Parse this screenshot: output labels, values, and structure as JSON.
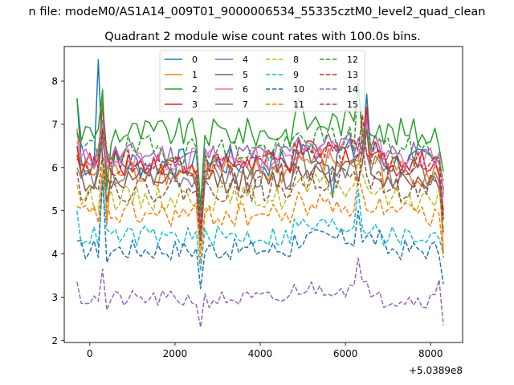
{
  "figure": {
    "suptitle": "n file: modeM0/AS1A14_009T01_9000006534_55335cztM0_level2_quad_clean"
  },
  "chart_data": {
    "type": "line",
    "title": "Quadrant 2 module wise count rates with 100.0s bins.",
    "xlabel": "",
    "ylabel": "",
    "x_offset_label": "+5.0389e8",
    "xlim": [
      -600,
      8750
    ],
    "ylim": [
      1.95,
      8.8
    ],
    "xticks": [
      0,
      2000,
      4000,
      6000,
      8000
    ],
    "xtick_labels": [
      "0",
      "2000",
      "4000",
      "6000",
      "8000"
    ],
    "yticks": [
      2,
      3,
      4,
      5,
      6,
      7,
      8
    ],
    "ytick_labels": [
      "2",
      "3",
      "4",
      "5",
      "6",
      "7",
      "8"
    ],
    "legend": {
      "location": "upper-center",
      "ncol": 4
    },
    "x_start": -300,
    "x_step": 100,
    "n_points": 87,
    "series": [
      {
        "name": "0",
        "color": "#1f77b4",
        "style": "solid",
        "base": 6.1,
        "start": 7.6,
        "end": 5.5,
        "amp": 0.35,
        "spikes": [
          [
            5,
            8.5
          ],
          [
            7,
            5.2
          ],
          [
            29,
            4.6
          ],
          [
            60,
            5.3
          ],
          [
            68,
            7.7
          ]
        ]
      },
      {
        "name": "1",
        "color": "#ff7f0e",
        "style": "solid",
        "base": 5.9,
        "start": 6.9,
        "end": 4.0,
        "amp": 0.35,
        "spikes": [
          [
            6,
            7.6
          ],
          [
            7,
            4.7
          ],
          [
            29,
            4.3
          ],
          [
            68,
            7.2
          ]
        ]
      },
      {
        "name": "2",
        "color": "#2ca02c",
        "style": "solid",
        "base": 6.8,
        "start": 7.6,
        "end": 5.9,
        "amp": 0.35,
        "spikes": [
          [
            6,
            7.8
          ],
          [
            7,
            5.5
          ],
          [
            29,
            5.1
          ],
          [
            52,
            7.6
          ],
          [
            66,
            7.9
          ],
          [
            86,
            5.8
          ]
        ]
      },
      {
        "name": "3",
        "color": "#d62728",
        "style": "solid",
        "base": 6.1,
        "start": 6.5,
        "end": 5.0,
        "amp": 0.3,
        "spikes": [
          [
            6,
            7.5
          ],
          [
            29,
            4.5
          ],
          [
            68,
            7.4
          ]
        ]
      },
      {
        "name": "4",
        "color": "#9467bd",
        "style": "solid",
        "base": 6.3,
        "start": 6.8,
        "end": 5.4,
        "amp": 0.3,
        "spikes": [
          [
            6,
            7.1
          ],
          [
            29,
            4.7
          ],
          [
            68,
            7.1
          ]
        ]
      },
      {
        "name": "5",
        "color": "#8c564b",
        "style": "solid",
        "base": 5.7,
        "start": 6.3,
        "end": 4.9,
        "amp": 0.3,
        "spikes": [
          [
            6,
            6.8
          ],
          [
            29,
            4.4
          ],
          [
            68,
            6.9
          ]
        ]
      },
      {
        "name": "6",
        "color": "#e377c2",
        "style": "solid",
        "base": 6.2,
        "start": 6.6,
        "end": 5.3,
        "amp": 0.3,
        "spikes": [
          [
            6,
            7.0
          ],
          [
            29,
            4.6
          ],
          [
            68,
            7.0
          ]
        ]
      },
      {
        "name": "7",
        "color": "#7f7f7f",
        "style": "solid",
        "base": 5.8,
        "start": 6.0,
        "end": 4.8,
        "amp": 0.3,
        "spikes": [
          [
            6,
            6.6
          ],
          [
            29,
            4.3
          ],
          [
            67,
            6.8
          ]
        ]
      },
      {
        "name": "8",
        "color": "#bcbd22",
        "style": "dashed",
        "base": 5.3,
        "start": 5.6,
        "end": 4.5,
        "amp": 0.3,
        "spikes": [
          [
            6,
            6.1
          ],
          [
            29,
            4.0
          ],
          [
            66,
            6.2
          ]
        ]
      },
      {
        "name": "9",
        "color": "#17becf",
        "style": "dashed",
        "base": 4.4,
        "start": 5.0,
        "end": 4.0,
        "amp": 0.25,
        "spikes": [
          [
            6,
            5.7
          ],
          [
            29,
            3.6
          ],
          [
            66,
            5.5
          ]
        ]
      },
      {
        "name": "10",
        "color": "#1f77b4",
        "style": "dashed",
        "base": 4.1,
        "start": 4.3,
        "end": 3.3,
        "amp": 0.25,
        "spikes": [
          [
            6,
            5.8
          ],
          [
            7,
            3.8
          ],
          [
            29,
            3.2
          ],
          [
            66,
            5.0
          ]
        ]
      },
      {
        "name": "11",
        "color": "#ff7f0e",
        "style": "dashed",
        "base": 4.9,
        "start": 5.1,
        "end": 3.9,
        "amp": 0.3,
        "spikes": [
          [
            6,
            5.9
          ],
          [
            29,
            3.8
          ],
          [
            66,
            5.8
          ]
        ]
      },
      {
        "name": "12",
        "color": "#2ca02c",
        "style": "dashed",
        "base": 6.4,
        "start": 6.8,
        "end": 5.7,
        "amp": 0.35,
        "spikes": [
          [
            6,
            7.5
          ],
          [
            29,
            4.9
          ],
          [
            66,
            8.05
          ]
        ]
      },
      {
        "name": "13",
        "color": "#d62728",
        "style": "dashed",
        "base": 6.1,
        "start": 6.2,
        "end": 4.8,
        "amp": 0.3,
        "spikes": [
          [
            6,
            6.9
          ],
          [
            29,
            4.6
          ],
          [
            67,
            7.2
          ]
        ]
      },
      {
        "name": "14",
        "color": "#9467bd",
        "style": "dashed",
        "base": 2.95,
        "start": 3.35,
        "end": 2.35,
        "amp": 0.2,
        "spikes": [
          [
            6,
            3.65
          ],
          [
            7,
            2.7
          ],
          [
            29,
            2.3
          ],
          [
            66,
            3.9
          ],
          [
            85,
            3.4
          ]
        ]
      },
      {
        "name": "15",
        "color": "#8c564b",
        "style": "dashed",
        "base": 5.5,
        "start": 5.9,
        "end": 4.5,
        "amp": 0.3,
        "spikes": [
          [
            6,
            6.3
          ],
          [
            29,
            4.2
          ],
          [
            67,
            6.5
          ]
        ]
      }
    ]
  }
}
